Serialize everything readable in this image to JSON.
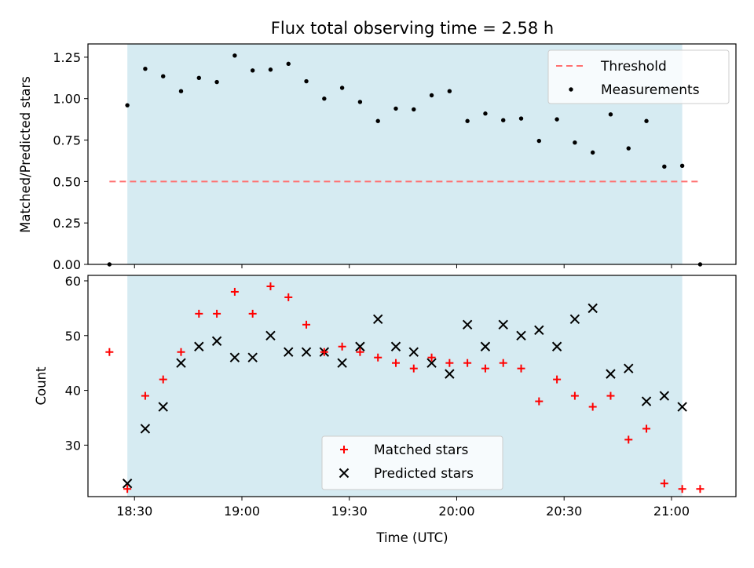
{
  "chart_data": [
    {
      "type": "scatter",
      "title": "Flux total observing time = 2.58 h",
      "xlabel": "",
      "ylabel": "Matched/Predicted stars",
      "ylim": [
        0,
        1.33
      ],
      "yticks": [
        0.0,
        0.25,
        0.5,
        0.75,
        1.0,
        1.25
      ],
      "ytick_labels": [
        "0.00",
        "0.25",
        "0.50",
        "0.75",
        "1.00",
        "1.25"
      ],
      "xlim": [
        "18:17",
        "21:18"
      ],
      "xticks": [
        "18:30",
        "19:00",
        "19:30",
        "20:00",
        "20:30",
        "21:00"
      ],
      "shaded_span": [
        "18:28",
        "21:03"
      ],
      "legend_position": "top-right",
      "threshold": {
        "name": "Threshold",
        "y": 0.5,
        "x_range": [
          "18:23",
          "21:08"
        ]
      },
      "series": [
        {
          "name": "Measurements",
          "x": [
            "18:23",
            "18:28",
            "18:33",
            "18:38",
            "18:43",
            "18:48",
            "18:53",
            "18:58",
            "19:03",
            "19:08",
            "19:13",
            "19:18",
            "19:23",
            "19:28",
            "19:33",
            "19:38",
            "19:43",
            "19:48",
            "19:53",
            "19:58",
            "20:03",
            "20:08",
            "20:13",
            "20:18",
            "20:23",
            "20:28",
            "20:33",
            "20:38",
            "20:43",
            "20:48",
            "20:53",
            "20:58",
            "21:03",
            "21:08"
          ],
          "values": [
            0.0,
            0.96,
            1.18,
            1.135,
            1.045,
            1.125,
            1.1,
            1.26,
            1.17,
            1.175,
            1.21,
            1.105,
            1.0,
            1.065,
            0.98,
            0.865,
            0.94,
            0.935,
            1.02,
            1.045,
            0.865,
            0.91,
            0.87,
            0.88,
            0.745,
            0.875,
            0.735,
            0.675,
            0.905,
            0.7,
            0.865,
            0.59,
            0.595,
            0.0
          ]
        }
      ]
    },
    {
      "type": "scatter",
      "title": "",
      "xlabel": "Time (UTC)",
      "ylabel": "Count",
      "ylim": [
        20.6,
        61
      ],
      "yticks": [
        30,
        40,
        50,
        60
      ],
      "ytick_labels": [
        "30",
        "40",
        "50",
        "60"
      ],
      "xlim": [
        "18:17",
        "21:18"
      ],
      "xticks": [
        "18:30",
        "19:00",
        "19:30",
        "20:00",
        "20:30",
        "21:00"
      ],
      "shaded_span": [
        "18:28",
        "21:03"
      ],
      "legend_position": "bottom-center",
      "series": [
        {
          "name": "Matched stars",
          "x": [
            "18:23",
            "18:28",
            "18:33",
            "18:38",
            "18:43",
            "18:48",
            "18:53",
            "18:58",
            "19:03",
            "19:08",
            "19:13",
            "19:18",
            "19:23",
            "19:28",
            "19:33",
            "19:38",
            "19:43",
            "19:48",
            "19:53",
            "19:58",
            "20:03",
            "20:08",
            "20:13",
            "20:18",
            "20:23",
            "20:28",
            "20:33",
            "20:38",
            "20:43",
            "20:48",
            "20:53",
            "20:58",
            "21:03",
            "21:08"
          ],
          "values": [
            47,
            22,
            39,
            42,
            47,
            54,
            54,
            58,
            54,
            59,
            57,
            52,
            47,
            48,
            47,
            46,
            45,
            44,
            46,
            45,
            45,
            44,
            45,
            44,
            38,
            42,
            39,
            37,
            39,
            31,
            33,
            23,
            22,
            22
          ]
        },
        {
          "name": "Predicted stars",
          "x": [
            "18:28",
            "18:33",
            "18:38",
            "18:43",
            "18:48",
            "18:53",
            "18:58",
            "19:03",
            "19:08",
            "19:13",
            "19:18",
            "19:23",
            "19:28",
            "19:33",
            "19:38",
            "19:43",
            "19:48",
            "19:53",
            "19:58",
            "20:03",
            "20:08",
            "20:13",
            "20:18",
            "20:23",
            "20:28",
            "20:33",
            "20:38",
            "20:43",
            "20:48",
            "20:53",
            "20:58",
            "21:03"
          ],
          "values": [
            23,
            33,
            37,
            45,
            48,
            49,
            46,
            46,
            50,
            47,
            47,
            47,
            45,
            48,
            53,
            48,
            47,
            45,
            43,
            52,
            48,
            52,
            50,
            51,
            48,
            53,
            55,
            43,
            44,
            38,
            39,
            37
          ]
        }
      ]
    }
  ],
  "colors": {
    "span": "#add8e6",
    "threshold": "#ff7070",
    "measurements": "#000000",
    "matched": "#ff0000",
    "predicted": "#000000"
  }
}
